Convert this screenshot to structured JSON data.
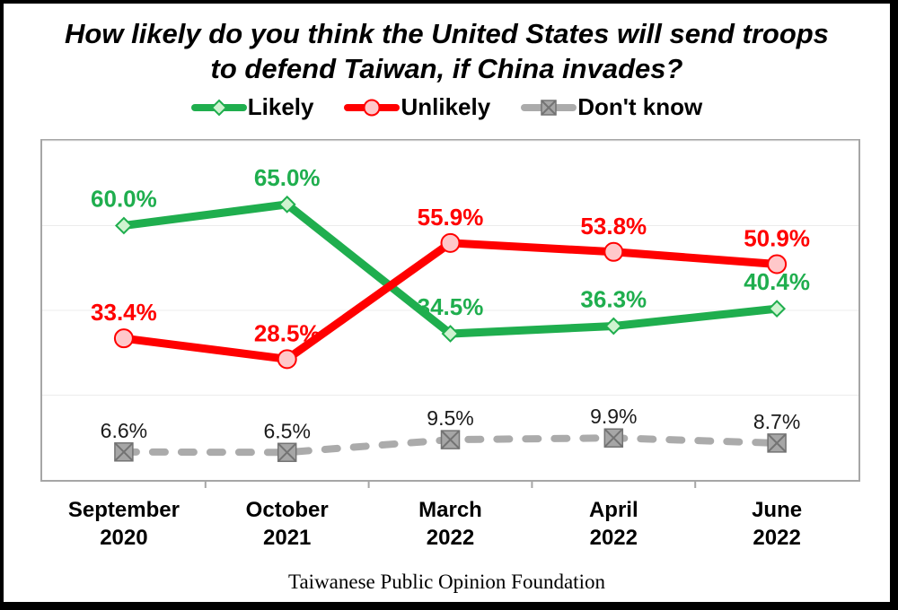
{
  "window": {
    "background": "#ffffff",
    "frame_border_color": "#000000",
    "plot_border_color": "#A6A6A6"
  },
  "title": {
    "line1": "How likely do you think the United States will send troops",
    "line2": "to defend Taiwan, if China invades?"
  },
  "legend": {
    "position": "top",
    "items": [
      {
        "label": "Likely"
      },
      {
        "label": "Unlikely"
      },
      {
        "label": "Don't know"
      }
    ]
  },
  "footer": {
    "source": "Taiwanese Public Opinion Foundation"
  },
  "chart_data": {
    "type": "line",
    "title": "How likely do you think the United States will send troops to defend Taiwan, if China invades?",
    "categories": [
      "September 2020",
      "October 2021",
      "March 2022",
      "April 2022",
      "June 2022"
    ],
    "category_labels": [
      [
        "September",
        "2020"
      ],
      [
        "October",
        "2021"
      ],
      [
        "March",
        "2022"
      ],
      [
        "April",
        "2022"
      ],
      [
        "June",
        "2022"
      ]
    ],
    "series": [
      {
        "name": "Likely",
        "values": [
          60.0,
          65.0,
          34.5,
          36.3,
          40.4
        ],
        "labels": [
          "60.0%",
          "65.0%",
          "34.5%",
          "36.3%",
          "40.4%"
        ],
        "color": "#1FAE4E",
        "marker": "diamond",
        "marker_fill": "#CFF3D0",
        "line_width": 9,
        "dashed": false,
        "label_color": "#1FAE4E",
        "label_bold": true,
        "label_dy": -21
      },
      {
        "name": "Unlikely",
        "values": [
          33.4,
          28.5,
          55.9,
          53.8,
          50.9
        ],
        "labels": [
          "33.4%",
          "28.5%",
          "55.9%",
          "53.8%",
          "50.9%"
        ],
        "color": "#FF0000",
        "marker": "circle",
        "marker_fill": "#FFC8CA",
        "line_width": 9,
        "dashed": false,
        "label_color": "#FF0000",
        "label_bold": true,
        "label_dy": -20
      },
      {
        "name": "Don't know",
        "values": [
          6.6,
          6.5,
          9.5,
          9.9,
          8.7
        ],
        "labels": [
          "6.6%",
          "6.5%",
          "9.5%",
          "9.9%",
          "8.7%"
        ],
        "color": "#ABABAB",
        "marker": "x-square",
        "marker_fill": "#A6A6A6",
        "line_width": 8,
        "dashed": true,
        "label_color": "#1A1A1A",
        "label_bold": false,
        "label_dy": -16
      }
    ],
    "xlabel": "",
    "ylabel": "",
    "ylim": [
      0,
      80
    ],
    "gridlines": [
      20,
      40,
      60,
      80
    ],
    "grid_on": true,
    "grid_color": "#ECECEC",
    "axis_color": "#A6A6A6",
    "legend_position": "top"
  }
}
